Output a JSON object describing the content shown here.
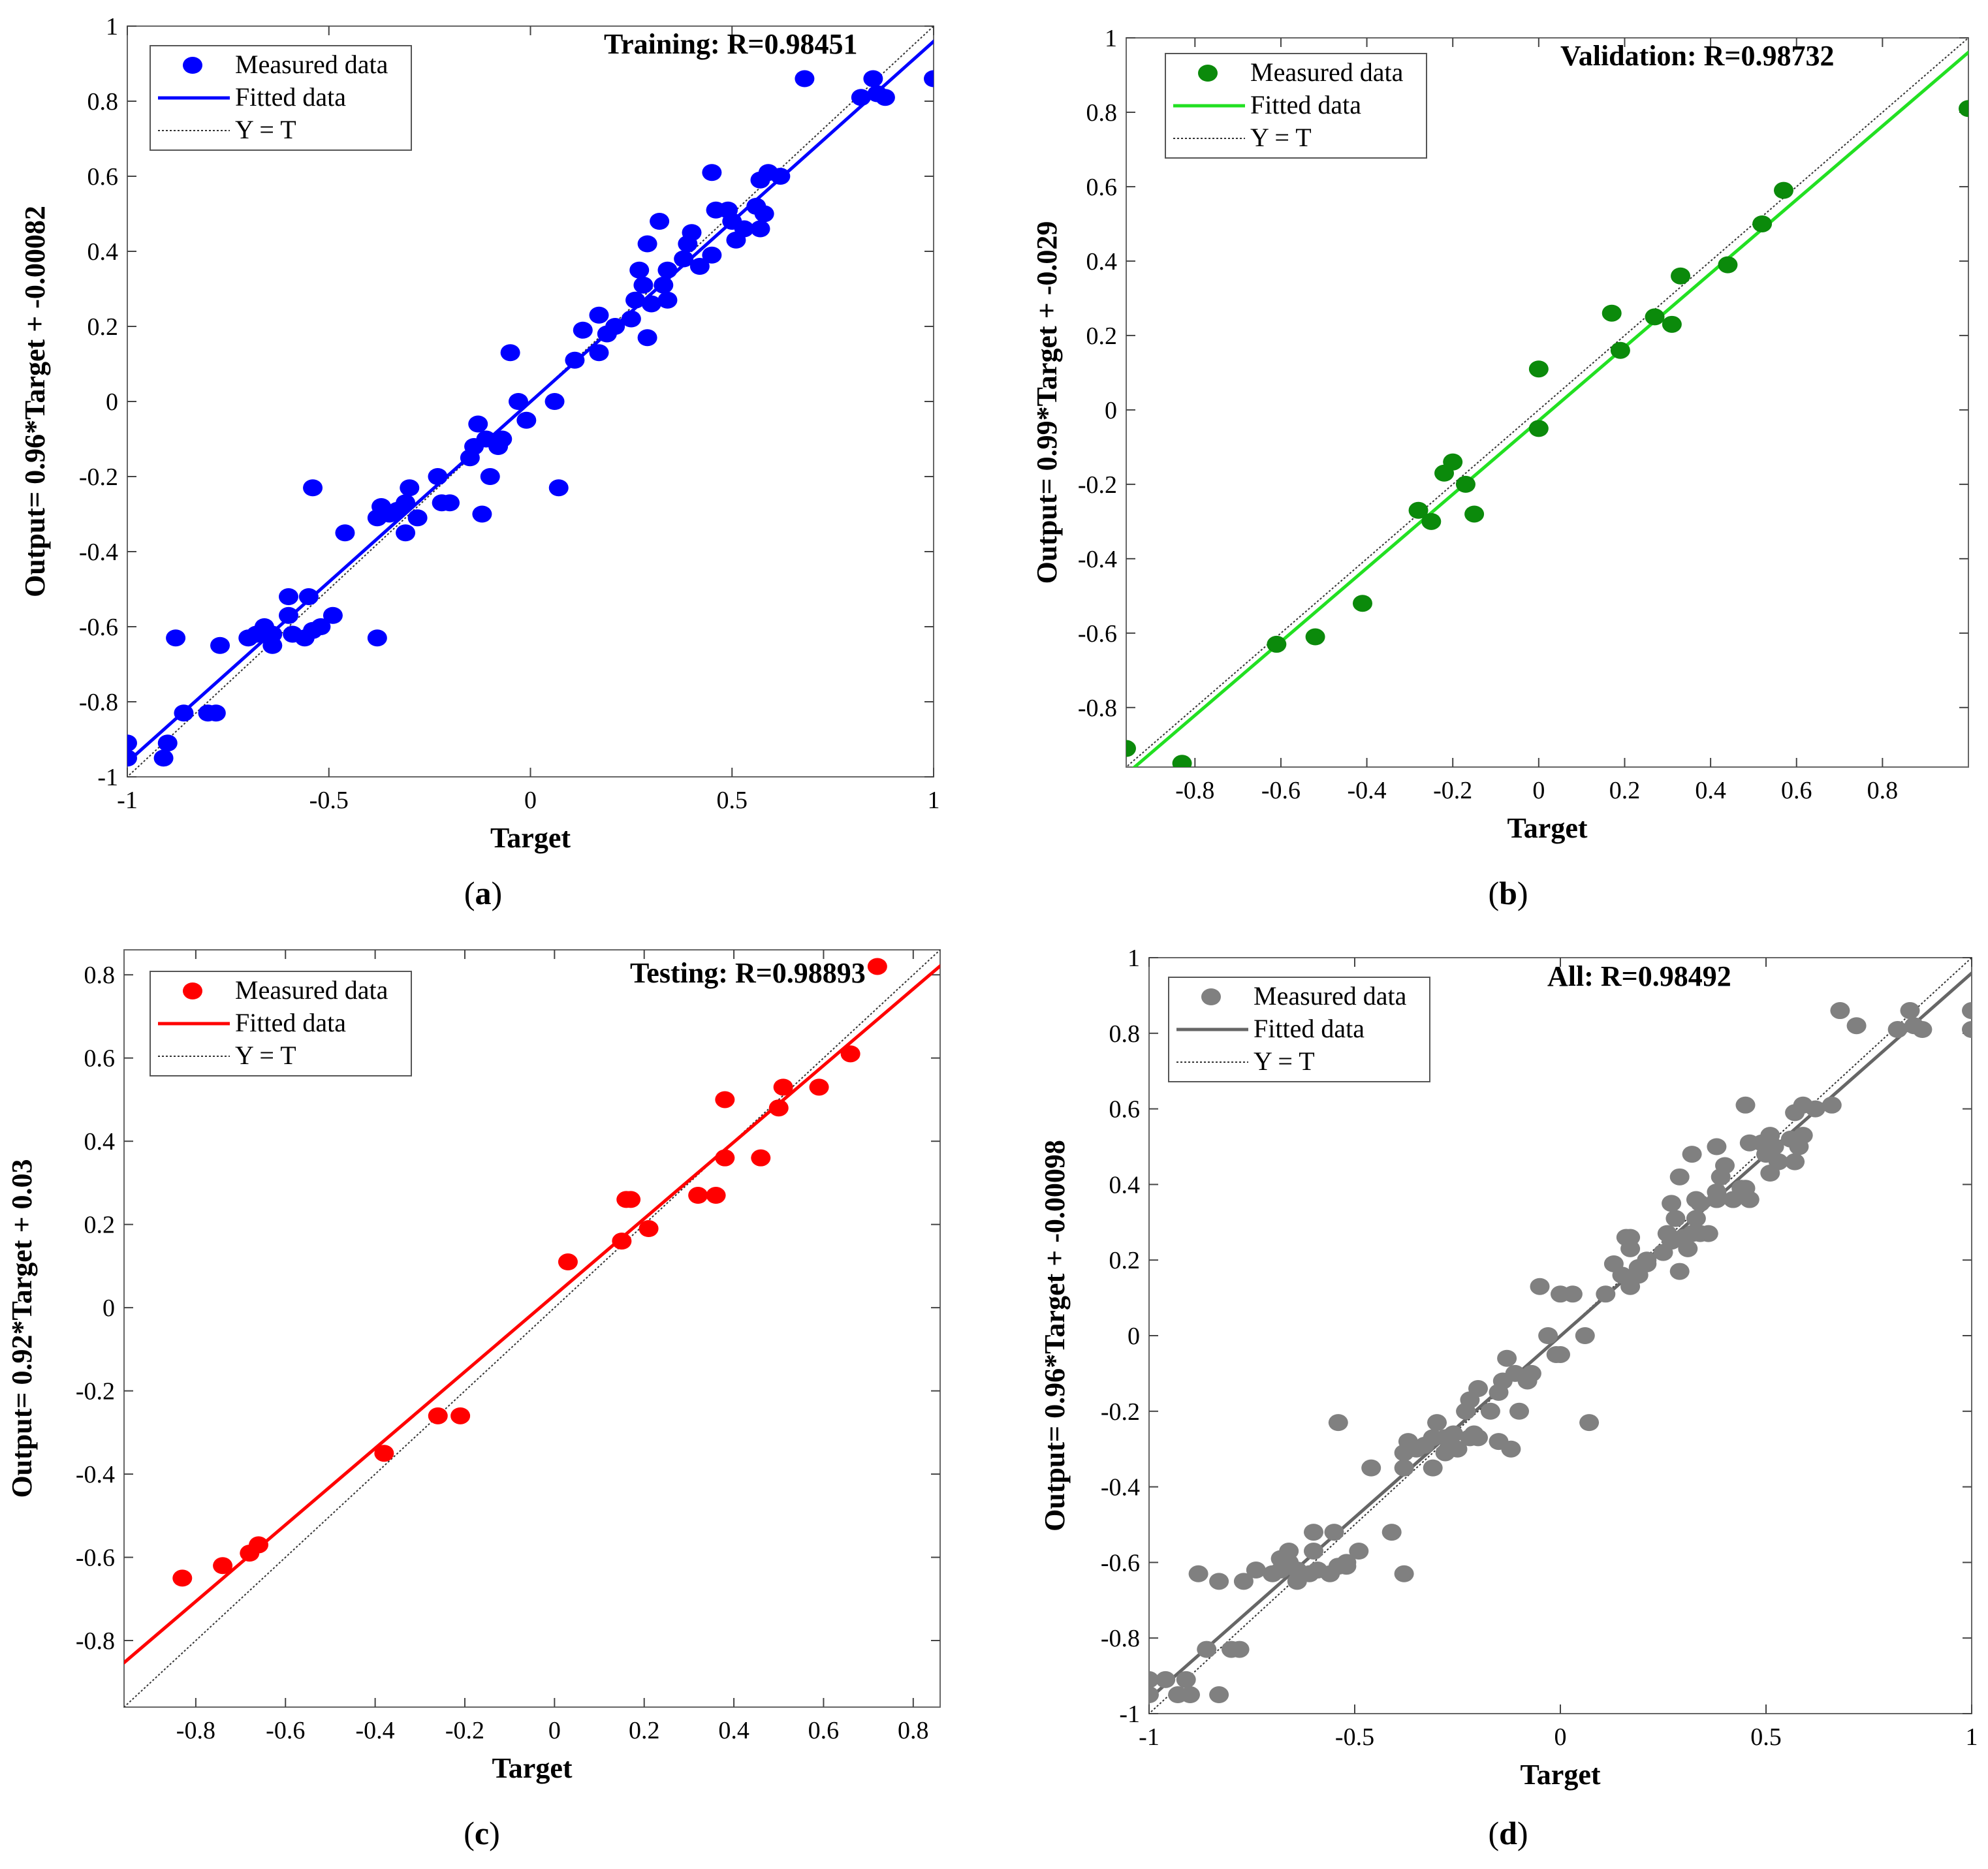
{
  "figure_captions": [
    "(a)",
    "(b)",
    "(c)",
    "(d)"
  ],
  "chart_data": [
    {
      "id": "a",
      "type": "scatter",
      "title": "Training: R=0.98451",
      "caption": "(a)",
      "caption_letter": "a",
      "xlabel": "Target",
      "ylabel": "Output= 0.96*Target + -0.00082",
      "xlim": [
        -1,
        1
      ],
      "ylim": [
        -1,
        1
      ],
      "xticks": [
        -1,
        -0.5,
        0,
        0.5,
        1
      ],
      "xtick_labels": [
        "-1",
        "-0.5",
        "0",
        "0.5",
        "1"
      ],
      "yticks": [
        -1,
        -0.8,
        -0.6,
        -0.4,
        -0.2,
        0,
        0.2,
        0.4,
        0.6,
        0.8,
        1
      ],
      "ytick_labels": [
        "-1",
        "-0.8",
        "-0.6",
        "-0.4",
        "-0.2",
        "0",
        "0.2",
        "0.4",
        "0.6",
        "0.8",
        "1"
      ],
      "color": "#0000ff",
      "legend": [
        "Measured data",
        "Fitted data",
        "Y = T"
      ],
      "fit": {
        "slope": 0.96,
        "intercept": -0.00082
      },
      "points": [
        [
          -1,
          -0.91
        ],
        [
          -1,
          -0.95
        ],
        [
          -0.91,
          -0.95
        ],
        [
          -0.9,
          -0.91
        ],
        [
          -0.86,
          -0.83
        ],
        [
          -0.88,
          -0.63
        ],
        [
          -0.8,
          -0.83
        ],
        [
          -0.78,
          -0.83
        ],
        [
          -0.77,
          -0.65
        ],
        [
          -0.7,
          -0.63
        ],
        [
          -0.68,
          -0.62
        ],
        [
          -0.66,
          -0.6
        ],
        [
          -0.64,
          -0.62
        ],
        [
          -0.64,
          -0.65
        ],
        [
          -0.6,
          -0.57
        ],
        [
          -0.6,
          -0.52
        ],
        [
          -0.59,
          -0.62
        ],
        [
          -0.56,
          -0.63
        ],
        [
          -0.55,
          -0.52
        ],
        [
          -0.54,
          -0.61
        ],
        [
          -0.52,
          -0.6
        ],
        [
          -0.49,
          -0.57
        ],
        [
          -0.54,
          -0.23
        ],
        [
          -0.46,
          -0.35
        ],
        [
          -0.38,
          -0.63
        ],
        [
          -0.38,
          -0.31
        ],
        [
          -0.37,
          -0.28
        ],
        [
          -0.35,
          -0.3
        ],
        [
          -0.33,
          -0.29
        ],
        [
          -0.31,
          -0.27
        ],
        [
          -0.31,
          -0.35
        ],
        [
          -0.3,
          -0.23
        ],
        [
          -0.28,
          -0.31
        ],
        [
          -0.23,
          -0.2
        ],
        [
          -0.22,
          -0.27
        ],
        [
          -0.2,
          -0.27
        ],
        [
          -0.15,
          -0.15
        ],
        [
          -0.14,
          -0.12
        ],
        [
          -0.13,
          -0.06
        ],
        [
          -0.12,
          -0.3
        ],
        [
          -0.11,
          -0.1
        ],
        [
          -0.1,
          -0.2
        ],
        [
          -0.08,
          -0.12
        ],
        [
          -0.07,
          -0.1
        ],
        [
          -0.05,
          0.13
        ],
        [
          -0.03,
          0.0
        ],
        [
          -0.01,
          -0.05
        ],
        [
          0.06,
          0.0
        ],
        [
          0.07,
          -0.23
        ],
        [
          0.11,
          0.11
        ],
        [
          0.13,
          0.19
        ],
        [
          0.17,
          0.13
        ],
        [
          0.17,
          0.23
        ],
        [
          0.19,
          0.18
        ],
        [
          0.21,
          0.2
        ],
        [
          0.25,
          0.22
        ],
        [
          0.26,
          0.27
        ],
        [
          0.27,
          0.35
        ],
        [
          0.28,
          0.31
        ],
        [
          0.29,
          0.42
        ],
        [
          0.3,
          0.26
        ],
        [
          0.29,
          0.17
        ],
        [
          0.32,
          0.48
        ],
        [
          0.33,
          0.31
        ],
        [
          0.34,
          0.27
        ],
        [
          0.34,
          0.35
        ],
        [
          0.38,
          0.38
        ],
        [
          0.39,
          0.42
        ],
        [
          0.4,
          0.45
        ],
        [
          0.42,
          0.36
        ],
        [
          0.45,
          0.39
        ],
        [
          0.45,
          0.61
        ],
        [
          0.46,
          0.51
        ],
        [
          0.49,
          0.51
        ],
        [
          0.5,
          0.48
        ],
        [
          0.51,
          0.43
        ],
        [
          0.53,
          0.46
        ],
        [
          0.56,
          0.52
        ],
        [
          0.57,
          0.59
        ],
        [
          0.57,
          0.46
        ],
        [
          0.58,
          0.5
        ],
        [
          0.59,
          0.61
        ],
        [
          0.62,
          0.6
        ],
        [
          0.68,
          0.86
        ],
        [
          0.82,
          0.81
        ],
        [
          0.85,
          0.86
        ],
        [
          0.86,
          0.82
        ],
        [
          0.88,
          0.81
        ],
        [
          1.0,
          0.86
        ]
      ]
    },
    {
      "id": "b",
      "type": "scatter",
      "title": "Validation: R=0.98732",
      "caption": "(b)",
      "caption_letter": "b",
      "xlabel": "Target",
      "ylabel": "Output= 0.99*Target + -0.029",
      "xlim": [
        -0.96,
        1.0
      ],
      "ylim": [
        -0.96,
        1.0
      ],
      "xticks": [
        -0.8,
        -0.6,
        -0.4,
        -0.2,
        0,
        0.2,
        0.4,
        0.6,
        0.8
      ],
      "xtick_labels": [
        "-0.8",
        "-0.6",
        "-0.4",
        "-0.2",
        "0",
        "0.2",
        "0.4",
        "0.6",
        "0.8"
      ],
      "yticks": [
        -0.8,
        -0.6,
        -0.4,
        -0.2,
        0,
        0.2,
        0.4,
        0.6,
        0.8,
        1
      ],
      "ytick_labels": [
        "-0.8",
        "-0.6",
        "-0.4",
        "-0.2",
        "0",
        "0.2",
        "0.4",
        "0.6",
        "0.8",
        "1"
      ],
      "color": "#0b8a0b",
      "fit_color": "#22e022",
      "legend": [
        "Measured data",
        "Fitted data",
        "Y = T"
      ],
      "fit": {
        "slope": 0.99,
        "intercept": -0.029
      },
      "points": [
        [
          -0.96,
          -0.91
        ],
        [
          -0.83,
          -0.95
        ],
        [
          -0.61,
          -0.63
        ],
        [
          -0.52,
          -0.61
        ],
        [
          -0.41,
          -0.52
        ],
        [
          -0.28,
          -0.27
        ],
        [
          -0.25,
          -0.3
        ],
        [
          -0.22,
          -0.17
        ],
        [
          -0.2,
          -0.14
        ],
        [
          -0.17,
          -0.2
        ],
        [
          -0.15,
          -0.28
        ],
        [
          0.0,
          0.11
        ],
        [
          0.0,
          -0.05
        ],
        [
          0.17,
          0.26
        ],
        [
          0.19,
          0.16
        ],
        [
          0.27,
          0.25
        ],
        [
          0.31,
          0.23
        ],
        [
          0.33,
          0.36
        ],
        [
          0.44,
          0.39
        ],
        [
          0.52,
          0.5
        ],
        [
          0.57,
          0.59
        ],
        [
          1.0,
          0.81
        ]
      ]
    },
    {
      "id": "c",
      "type": "scatter",
      "title": "Testing: R=0.98893",
      "caption": "(c)",
      "caption_letter": "c",
      "xlabel": "Target",
      "ylabel": "Output= 0.92*Target + 0.03",
      "xlim": [
        -0.96,
        0.86
      ],
      "ylim": [
        -0.96,
        0.86
      ],
      "xticks": [
        -0.8,
        -0.6,
        -0.4,
        -0.2,
        0,
        0.2,
        0.4,
        0.6,
        0.8
      ],
      "xtick_labels": [
        "-0.8",
        "-0.6",
        "-0.4",
        "-0.2",
        "0",
        "0.2",
        "0.4",
        "0.6",
        "0.8"
      ],
      "yticks": [
        -0.8,
        -0.6,
        -0.4,
        -0.2,
        0,
        0.2,
        0.4,
        0.6,
        0.8
      ],
      "ytick_labels": [
        "-0.8",
        "-0.6",
        "-0.4",
        "-0.2",
        "0",
        "0.2",
        "0.4",
        "0.6",
        "0.8"
      ],
      "color": "#ff0000",
      "legend": [
        "Measured data",
        "Fitted data",
        "Y = T"
      ],
      "fit": {
        "slope": 0.92,
        "intercept": 0.03
      },
      "points": [
        [
          -0.83,
          -0.65
        ],
        [
          -0.74,
          -0.62
        ],
        [
          -0.68,
          -0.59
        ],
        [
          -0.66,
          -0.57
        ],
        [
          -0.38,
          -0.35
        ],
        [
          -0.26,
          -0.26
        ],
        [
          -0.21,
          -0.26
        ],
        [
          0.03,
          0.11
        ],
        [
          0.15,
          0.16
        ],
        [
          0.16,
          0.26
        ],
        [
          0.17,
          0.26
        ],
        [
          0.21,
          0.19
        ],
        [
          0.32,
          0.27
        ],
        [
          0.36,
          0.27
        ],
        [
          0.38,
          0.5
        ],
        [
          0.38,
          0.36
        ],
        [
          0.46,
          0.36
        ],
        [
          0.5,
          0.48
        ],
        [
          0.51,
          0.53
        ],
        [
          0.59,
          0.53
        ],
        [
          0.66,
          0.61
        ],
        [
          0.72,
          0.82
        ]
      ]
    },
    {
      "id": "d",
      "type": "scatter",
      "title": "All: R=0.98492",
      "caption": "(d)",
      "caption_letter": "d",
      "xlabel": "Target",
      "ylabel": "Output= 0.96*Target + -0.00098",
      "xlim": [
        -1,
        1
      ],
      "ylim": [
        -1,
        1
      ],
      "xticks": [
        -1,
        -0.5,
        0,
        0.5,
        1
      ],
      "xtick_labels": [
        "-1",
        "-0.5",
        "0",
        "0.5",
        "1"
      ],
      "yticks": [
        -1,
        -0.8,
        -0.6,
        -0.4,
        -0.2,
        0,
        0.2,
        0.4,
        0.6,
        0.8,
        1
      ],
      "ytick_labels": [
        "-1",
        "-0.8",
        "-0.6",
        "-0.4",
        "-0.2",
        "0",
        "0.2",
        "0.4",
        "0.6",
        "0.8",
        "1"
      ],
      "color": "#808080",
      "fit_color": "#666666",
      "legend": [
        "Measured data",
        "Fitted data",
        "Y = T"
      ],
      "fit": {
        "slope": 0.96,
        "intercept": -0.00098
      },
      "points": [
        [
          -1,
          -0.91
        ],
        [
          -1,
          -0.95
        ],
        [
          -0.96,
          -0.91
        ],
        [
          -0.93,
          -0.95
        ],
        [
          -0.91,
          -0.91
        ],
        [
          -0.9,
          -0.95
        ],
        [
          -0.88,
          -0.63
        ],
        [
          -0.86,
          -0.83
        ],
        [
          -0.83,
          -0.95
        ],
        [
          -0.83,
          -0.65
        ],
        [
          -0.8,
          -0.83
        ],
        [
          -0.78,
          -0.83
        ],
        [
          -0.77,
          -0.65
        ],
        [
          -0.74,
          -0.62
        ],
        [
          -0.7,
          -0.63
        ],
        [
          -0.68,
          -0.62
        ],
        [
          -0.68,
          -0.59
        ],
        [
          -0.66,
          -0.6
        ],
        [
          -0.66,
          -0.57
        ],
        [
          -0.64,
          -0.62
        ],
        [
          -0.64,
          -0.65
        ],
        [
          -0.61,
          -0.63
        ],
        [
          -0.6,
          -0.57
        ],
        [
          -0.6,
          -0.52
        ],
        [
          -0.59,
          -0.62
        ],
        [
          -0.56,
          -0.63
        ],
        [
          -0.55,
          -0.52
        ],
        [
          -0.54,
          -0.61
        ],
        [
          -0.52,
          -0.61
        ],
        [
          -0.52,
          -0.6
        ],
        [
          -0.49,
          -0.57
        ],
        [
          -0.54,
          -0.23
        ],
        [
          -0.46,
          -0.35
        ],
        [
          -0.41,
          -0.52
        ],
        [
          -0.38,
          -0.63
        ],
        [
          -0.38,
          -0.35
        ],
        [
          -0.38,
          -0.31
        ],
        [
          -0.37,
          -0.28
        ],
        [
          -0.35,
          -0.3
        ],
        [
          -0.33,
          -0.29
        ],
        [
          -0.31,
          -0.27
        ],
        [
          -0.31,
          -0.35
        ],
        [
          -0.3,
          -0.23
        ],
        [
          -0.28,
          -0.31
        ],
        [
          -0.28,
          -0.27
        ],
        [
          -0.26,
          -0.26
        ],
        [
          -0.25,
          -0.3
        ],
        [
          -0.23,
          -0.2
        ],
        [
          -0.22,
          -0.27
        ],
        [
          -0.22,
          -0.17
        ],
        [
          -0.21,
          -0.26
        ],
        [
          -0.2,
          -0.27
        ],
        [
          -0.2,
          -0.14
        ],
        [
          -0.17,
          -0.2
        ],
        [
          -0.15,
          -0.28
        ],
        [
          -0.15,
          -0.15
        ],
        [
          -0.14,
          -0.12
        ],
        [
          -0.13,
          -0.06
        ],
        [
          -0.12,
          -0.3
        ],
        [
          -0.11,
          -0.1
        ],
        [
          -0.1,
          -0.2
        ],
        [
          -0.08,
          -0.12
        ],
        [
          -0.07,
          -0.1
        ],
        [
          -0.05,
          0.13
        ],
        [
          -0.03,
          0.0
        ],
        [
          0.0,
          0.11
        ],
        [
          0.0,
          -0.05
        ],
        [
          -0.01,
          -0.05
        ],
        [
          0.03,
          0.11
        ],
        [
          0.06,
          0.0
        ],
        [
          0.07,
          -0.23
        ],
        [
          0.11,
          0.11
        ],
        [
          0.13,
          0.19
        ],
        [
          0.15,
          0.16
        ],
        [
          0.16,
          0.26
        ],
        [
          0.17,
          0.13
        ],
        [
          0.17,
          0.23
        ],
        [
          0.17,
          0.26
        ],
        [
          0.19,
          0.18
        ],
        [
          0.19,
          0.16
        ],
        [
          0.21,
          0.2
        ],
        [
          0.21,
          0.19
        ],
        [
          0.25,
          0.22
        ],
        [
          0.26,
          0.27
        ],
        [
          0.27,
          0.35
        ],
        [
          0.27,
          0.25
        ],
        [
          0.28,
          0.31
        ],
        [
          0.29,
          0.42
        ],
        [
          0.29,
          0.17
        ],
        [
          0.3,
          0.26
        ],
        [
          0.31,
          0.23
        ],
        [
          0.32,
          0.48
        ],
        [
          0.32,
          0.27
        ],
        [
          0.33,
          0.31
        ],
        [
          0.33,
          0.36
        ],
        [
          0.34,
          0.27
        ],
        [
          0.34,
          0.35
        ],
        [
          0.36,
          0.27
        ],
        [
          0.38,
          0.38
        ],
        [
          0.38,
          0.5
        ],
        [
          0.38,
          0.36
        ],
        [
          0.39,
          0.42
        ],
        [
          0.4,
          0.45
        ],
        [
          0.42,
          0.36
        ],
        [
          0.44,
          0.39
        ],
        [
          0.45,
          0.39
        ],
        [
          0.45,
          0.61
        ],
        [
          0.46,
          0.51
        ],
        [
          0.46,
          0.36
        ],
        [
          0.49,
          0.51
        ],
        [
          0.5,
          0.48
        ],
        [
          0.51,
          0.53
        ],
        [
          0.52,
          0.5
        ],
        [
          0.51,
          0.43
        ],
        [
          0.53,
          0.46
        ],
        [
          0.56,
          0.52
        ],
        [
          0.57,
          0.59
        ],
        [
          0.57,
          0.46
        ],
        [
          0.58,
          0.5
        ],
        [
          0.59,
          0.61
        ],
        [
          0.59,
          0.53
        ],
        [
          0.62,
          0.6
        ],
        [
          0.66,
          0.61
        ],
        [
          0.68,
          0.86
        ],
        [
          0.72,
          0.82
        ],
        [
          0.82,
          0.81
        ],
        [
          0.85,
          0.86
        ],
        [
          0.86,
          0.82
        ],
        [
          0.88,
          0.81
        ],
        [
          1.0,
          0.86
        ],
        [
          1.0,
          0.81
        ]
      ]
    }
  ]
}
